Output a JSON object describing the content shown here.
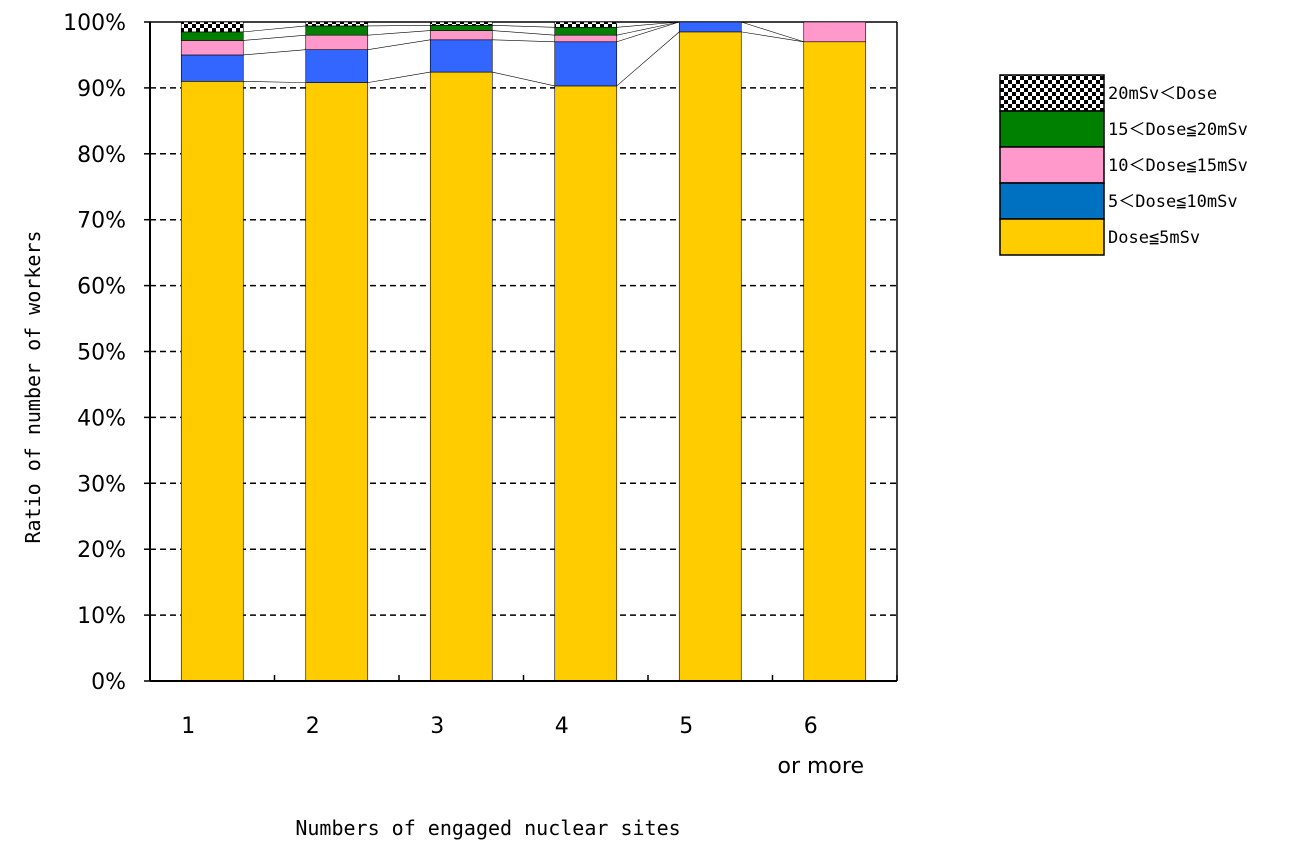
{
  "chart_data": {
    "type": "bar",
    "stacked": true,
    "percent": true,
    "title": "",
    "xlabel": "Numbers of engaged nuclear sites",
    "ylabel": "Ratio of number of workers",
    "ylim": [
      0,
      100
    ],
    "y_ticks": [
      "0%",
      "10%",
      "20%",
      "30%",
      "40%",
      "50%",
      "60%",
      "70%",
      "80%",
      "90%",
      "100%"
    ],
    "categories": [
      {
        "line1": "1",
        "line2": ""
      },
      {
        "line1": "2",
        "line2": ""
      },
      {
        "line1": "3",
        "line2": ""
      },
      {
        "line1": "4",
        "line2": ""
      },
      {
        "line1": "5",
        "line2": ""
      },
      {
        "line1": "6",
        "line2": "or more"
      }
    ],
    "grid": "horizontal dashed",
    "legend_position": "right",
    "series": [
      {
        "name": "Dose≦5mSv",
        "color": "#FFCC00",
        "values": [
          91.0,
          90.8,
          92.4,
          90.3,
          98.5,
          97.0
        ]
      },
      {
        "name": "5＜Dose≦10mSv",
        "color": "#3366FF",
        "legend_color": "#0070C0",
        "values": [
          4.0,
          5.0,
          4.9,
          6.7,
          1.5,
          0.0
        ]
      },
      {
        "name": "10＜Dose≦15mSv",
        "color": "#FF99CC",
        "values": [
          2.2,
          2.2,
          1.4,
          1.0,
          0.0,
          3.0
        ]
      },
      {
        "name": "15＜Dose≦20mSv",
        "color": "#008000",
        "values": [
          1.3,
          1.4,
          0.8,
          1.2,
          0.0,
          0.0
        ]
      },
      {
        "name": "20mSv＜Dose",
        "color": "checker",
        "values": [
          1.5,
          0.6,
          0.5,
          0.8,
          0.0,
          0.0
        ]
      }
    ]
  }
}
